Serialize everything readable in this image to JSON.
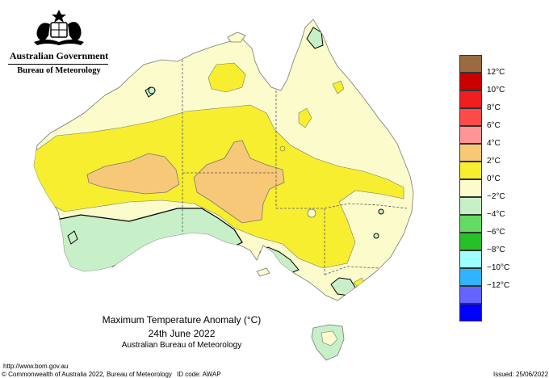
{
  "header": {
    "government": "Australian Government",
    "agency": "Bureau of Meteorology"
  },
  "map": {
    "title": "Maximum Temperature Anomaly (°C)",
    "date": "24th June 2022",
    "source": "Australian Bureau of Meteorology"
  },
  "footer": {
    "url": "http://www.bom.gov.au",
    "copyright": "© Commonwealth of Australia 2022, Bureau of Meteorology",
    "id_code": "ID code: AWAP",
    "issued": "Issued: 25/06/2022"
  },
  "legend": [
    {
      "label": "",
      "color": "#9b6a40"
    },
    {
      "label": "12°C",
      "color": "#c80000"
    },
    {
      "label": "10°C",
      "color": "#f01e1e"
    },
    {
      "label": "8°C",
      "color": "#ff4a4a"
    },
    {
      "label": "6°C",
      "color": "#ff9696"
    },
    {
      "label": "4°C",
      "color": "#f7c878"
    },
    {
      "label": "2°C",
      "color": "#f7ee30"
    },
    {
      "label": "0°C",
      "color": "#fbfbcc"
    },
    {
      "label": "−2°C",
      "color": "#c8f0c8"
    },
    {
      "label": "−4°C",
      "color": "#64dc64"
    },
    {
      "label": "−6°C",
      "color": "#28c028"
    },
    {
      "label": "−8°C",
      "color": "#a0ffff"
    },
    {
      "label": "−10°C",
      "color": "#30b4ff"
    },
    {
      "label": "−12°C",
      "color": "#6464ff"
    },
    {
      "label": "",
      "color": "#0000ff"
    }
  ],
  "colors": {
    "anomaly_0_2": "#fbfbcc",
    "anomaly_2_4": "#f7ee30",
    "anomaly_4_6": "#f7c878",
    "anomaly_neg2_0": "#c8f0c8",
    "anomaly_neg4_neg2": "#64dc64"
  }
}
